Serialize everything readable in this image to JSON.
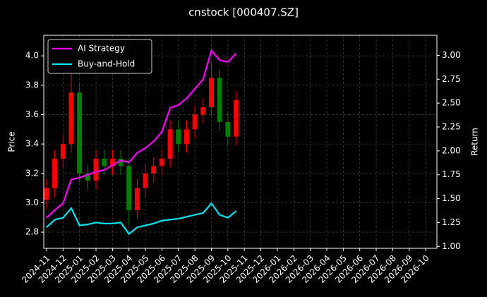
{
  "chart_data": {
    "type": "candlestick",
    "title": "cnstock [000407.SZ]",
    "ylabel": "Price",
    "y2label": "Return",
    "x": [
      0,
      0.5,
      1,
      1.5,
      2,
      2.5,
      3,
      3.5,
      4,
      4.5,
      5,
      5.5,
      6,
      6.5,
      7,
      7.5,
      8,
      8.5,
      9,
      9.5,
      10,
      10.5,
      11,
      11.5
    ],
    "open": [
      3.02,
      3.1,
      3.3,
      3.4,
      3.75,
      3.2,
      3.15,
      3.3,
      3.25,
      3.3,
      3.25,
      2.95,
      3.1,
      3.2,
      3.25,
      3.3,
      3.5,
      3.4,
      3.5,
      3.6,
      3.65,
      3.85,
      3.55,
      3.45
    ],
    "high": [
      3.16,
      3.36,
      3.46,
      3.88,
      3.81,
      3.26,
      3.36,
      3.36,
      3.36,
      3.36,
      3.31,
      3.16,
      3.26,
      3.31,
      3.36,
      3.56,
      3.56,
      3.56,
      3.66,
      3.71,
      3.95,
      3.91,
      3.61,
      3.76
    ],
    "low": [
      2.96,
      3.04,
      3.24,
      3.34,
      3.14,
      3.09,
      3.09,
      3.19,
      3.19,
      3.19,
      2.85,
      2.89,
      3.04,
      3.14,
      3.19,
      3.24,
      3.34,
      3.34,
      3.44,
      3.54,
      3.59,
      3.49,
      3.39,
      3.39
    ],
    "close": [
      3.1,
      3.3,
      3.4,
      3.75,
      3.2,
      3.15,
      3.3,
      3.25,
      3.3,
      3.25,
      2.95,
      3.1,
      3.2,
      3.25,
      3.3,
      3.5,
      3.4,
      3.5,
      3.6,
      3.65,
      3.85,
      3.55,
      3.45,
      3.7
    ],
    "up_color": "#ff0000",
    "down_color": "#008000",
    "series": [
      {
        "name": "AI Strategy",
        "color": "#ff00ff",
        "axis": "y2",
        "values": [
          1.3,
          1.38,
          1.45,
          1.7,
          1.72,
          1.75,
          1.78,
          1.8,
          1.85,
          1.9,
          1.88,
          1.98,
          2.03,
          2.1,
          2.2,
          2.45,
          2.48,
          2.55,
          2.65,
          2.75,
          3.05,
          2.95,
          2.93,
          3.02
        ]
      },
      {
        "name": "Buy-and-Hold",
        "color": "#00e5ee",
        "axis": "y2",
        "values": [
          1.2,
          1.28,
          1.3,
          1.4,
          1.22,
          1.23,
          1.25,
          1.24,
          1.24,
          1.25,
          1.13,
          1.2,
          1.22,
          1.24,
          1.27,
          1.28,
          1.29,
          1.31,
          1.33,
          1.35,
          1.45,
          1.33,
          1.3,
          1.37
        ]
      }
    ],
    "xlim": [
      -0.17,
      23.68
    ],
    "xticks": [
      {
        "value": 0,
        "label": "2024-11"
      },
      {
        "value": 1,
        "label": "2024-12"
      },
      {
        "value": 2,
        "label": "2025-01"
      },
      {
        "value": 3,
        "label": "2025-02"
      },
      {
        "value": 4,
        "label": "2025-03"
      },
      {
        "value": 5,
        "label": "2025-04"
      },
      {
        "value": 6,
        "label": "2025-05"
      },
      {
        "value": 7,
        "label": "2025-06"
      },
      {
        "value": 8,
        "label": "2025-07"
      },
      {
        "value": 9,
        "label": "2025-08"
      },
      {
        "value": 10,
        "label": "2025-09"
      },
      {
        "value": 11,
        "label": "2025-10"
      },
      {
        "value": 12,
        "label": "2025-11"
      },
      {
        "value": 13,
        "label": "2025-12"
      },
      {
        "value": 14,
        "label": "2026-01"
      },
      {
        "value": 15,
        "label": "2026-02"
      },
      {
        "value": 16,
        "label": "2026-03"
      },
      {
        "value": 17,
        "label": "2026-04"
      },
      {
        "value": 18,
        "label": "2026-05"
      },
      {
        "value": 19,
        "label": "2026-06"
      },
      {
        "value": 20,
        "label": "2026-07"
      },
      {
        "value": 21,
        "label": "2026-08"
      },
      {
        "value": 22,
        "label": "2026-09"
      },
      {
        "value": 23,
        "label": "2026-10"
      }
    ],
    "ylim": [
      2.69,
      4.14
    ],
    "yticks": [
      2.8,
      {
        "value": 3,
        "label": "3.0"
      },
      3.2,
      3.4,
      3.6,
      3.8,
      {
        "value": 4,
        "label": "4.0"
      }
    ],
    "y2lim": [
      0.98,
      3.21
    ],
    "y2ticks": [
      {
        "value": 1,
        "label": "1.00"
      },
      {
        "value": 1.25,
        "label": "1.25"
      },
      {
        "value": 1.5,
        "label": "1.50"
      },
      {
        "value": 1.75,
        "label": "1.75"
      },
      {
        "value": 2,
        "label": "2.00"
      },
      {
        "value": 2.25,
        "label": "2.25"
      },
      {
        "value": 2.5,
        "label": "2.50"
      },
      {
        "value": 2.75,
        "label": "2.75"
      },
      {
        "value": 3,
        "label": "3.00"
      }
    ],
    "grid": true,
    "legend": "upper left"
  }
}
